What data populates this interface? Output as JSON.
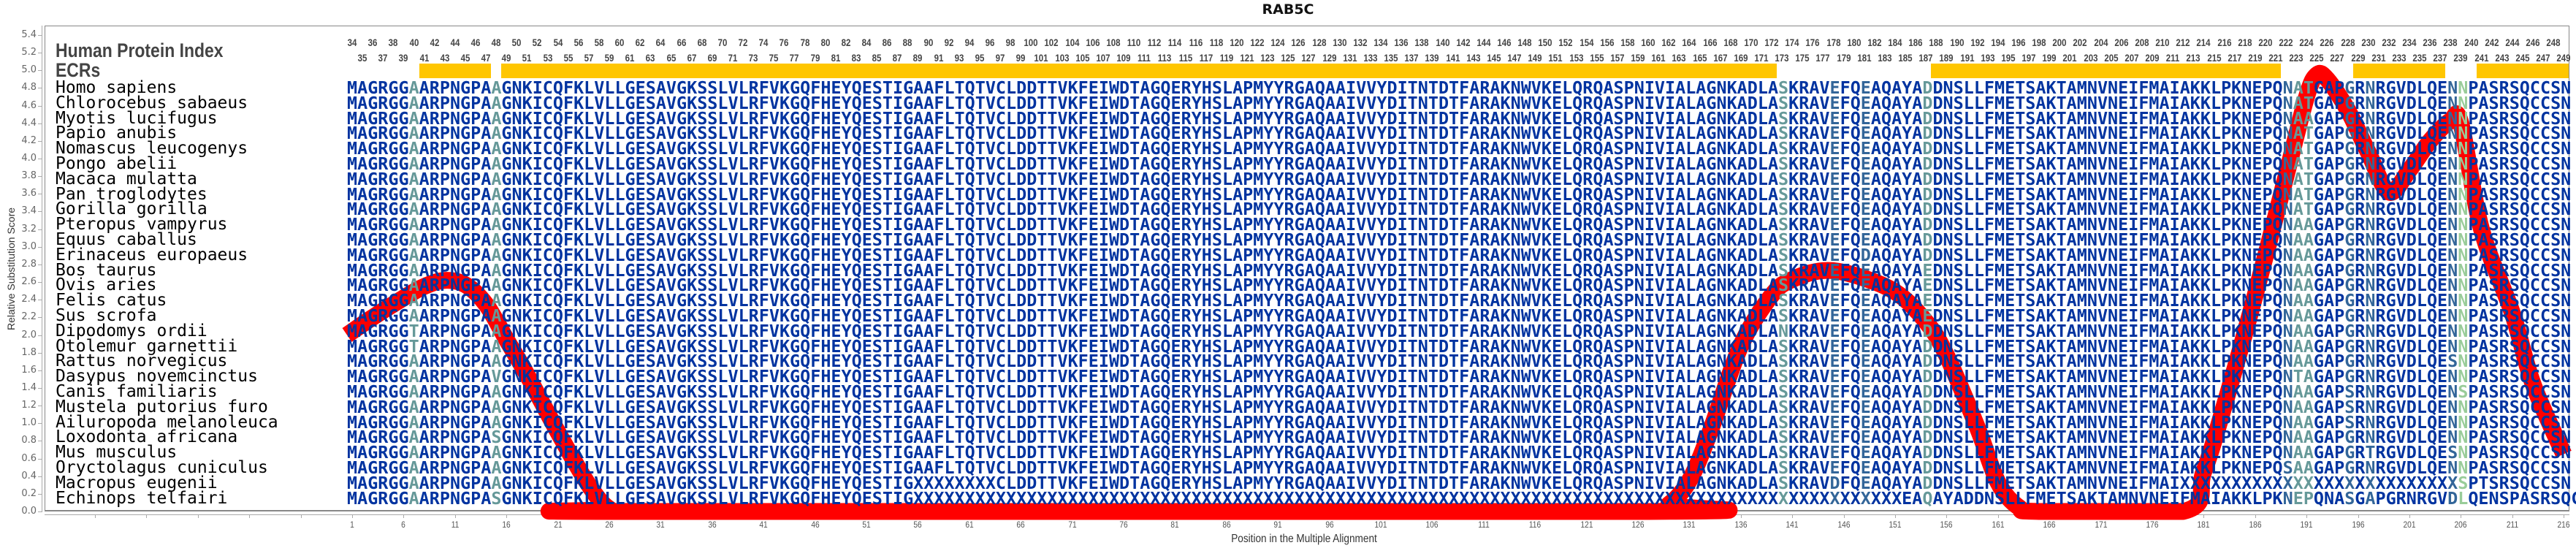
{
  "title": "RAB5C",
  "labels": {
    "human_protein_index": "Human Protein Index",
    "ecrs": "ECRs"
  },
  "human_index": {
    "start": 34,
    "end": 249
  },
  "ecr_ranges": [
    [
      41,
      47
    ],
    [
      49,
      172
    ],
    [
      188,
      221
    ],
    [
      229,
      237
    ],
    [
      241,
      249
    ]
  ],
  "colors": {
    "ecr": "#ffc600",
    "curve": "#ff0000",
    "conserved": "#0033a0",
    "moderate": "#336699",
    "low": "#669999",
    "lowest": "#99cc99"
  },
  "column_conservation": {
    "moderate": [
      145,
      148,
      189,
      195,
      197,
      205
    ],
    "low": [
      7,
      15,
      140,
      154,
      190,
      191
    ],
    "lowest": [
      206
    ]
  },
  "species": [
    {
      "name": "Homo sapiens",
      "sequence": "MAGRGGAARPNGPAAGNKICQFKLVLLGESAVGKSSLVLRFVKGQFHEYQESTIGAAFLTQTVCLDDTTVKFEIWDTAGQERYHSLAPMYYRGAQAAIVVYDITNTDTFARAKNWVKELQRQASPNIVIALAGNKADLASKRAVEFQEAQAYADDNSLLFMETSAKTAMNVNEIFMAIAKKLPKNEPQNATGAPGRNRGVDLQENNPASRSQCCSN"
    },
    {
      "name": "Chlorocebus sabaeus",
      "sequence": "MAGRGGAARPNGPAAGNKICQFKLVLLGESAVGKSSLVLRFVKGQFHEYQESTIGAAFLTQTVCLDDTTVKFEIWDTAGQERYHSLAPMYYRGAQAAIVVYDITNTDTFARAKNWVKELQRQASPNIVIALAGNKADLASKRAVEFQEAQAYADDNSLLFMETSAKTAMNVNEIFMAIAKKLPKNEPQNATGAPGRNRGVDLQENNPASRSQCCSN"
    },
    {
      "name": "Myotis lucifugus",
      "sequence": "MAGRGGAARPNGPAAGNKICQFKLVLLGESAVGKSSLVLRFVKGQFHEYQESTIGAAFLTQTVCLDDTTVKFEIWDTAGQERYHSLAPMYYRGAQAAIVVYDITNTDTFARAKNWVKELQRQASPNIVIALAGNKADLASKRAVEFQEAQAYADDNSLLFMETSAKTAMNVNEIFMAIAKKLPKNEPQNAAGAPGRNRGVDLQENNPASRSQCCSN"
    },
    {
      "name": "Papio anubis",
      "sequence": "MAGRGGAARPNGPAAGNKICQFKLVLLGESAVGKSSLVLRFVKGQFHEYQESTIGAAFLTQTVCLDDTTVKFEIWDTAGQERYHSLAPMYYRGAQAAIVVYDITNTDTFARAKNWVKELQRQASPNIVIALAGNKADLASKRAVEFQEAQAYADDNSLLFMETSAKTAMNVNEIFMAIAKKLPKNEPQNATGAPGRNRGVDLQENNPASRSQCCSN"
    },
    {
      "name": "Nomascus leucogenys",
      "sequence": "MAGRGGAARPNGPAAGNKICQFKLVLLGESAVGKSSLVLRFVKGQFHEYQESTIGAAFLTQTVCLDDTTVKFEIWDTAGQERYHSLAPMYYRGAQAAIVVYDITNTDTFARAKNWVKELQRQASPNIVIALAGNKADLASKRAVEFQEAQAYADDNSLLFMETSAKTAMNVNEIFMAIAKKLPKNEPQNATGAPGRNRGVDLQENNPASRSQCCSN"
    },
    {
      "name": "Pongo abelii",
      "sequence": "MAGRGGAARPNGPAAGNKICQFKLVLLGESAVGKSSLVLRFVKGQFHEYQESTIGAAFLTQTVCLDDTTVKFEIWDTAGQERYHSLAPMYYRGAQAAIVVYDITNTDTFARAKNWVKELQRQASPNIVIALAGNKADLASKRAVEFQEAQAYADDNSLLFMETSAKTAMNVNEIFMAIAKKLPKNEPQNATGAPGRNRGVDLQENNPASRSQCCSN"
    },
    {
      "name": "Macaca mulatta",
      "sequence": "MAGRGGAARPNGPAAGNKICQFKLVLLGESAVGKSSLVLRFVKGQFHEYQESTIGAAFLTQTVCLDDTTVKFEIWDTAGQERYHSLAPMYYRGAQAAIVVYDITNTDTFARAKNWVKELQRQASPNIVIALAGNKADLASKRAVEFQEAQAYADDNSLLFMETSAKTAMNVNEIFMAIAKKLPKNEPQNATGAPGRNRGVDLQENNPASRSQCCSN"
    },
    {
      "name": "Pan troglodytes",
      "sequence": "MAGRGGAARPNGPAAGNKICQFKLVLLGESAVGKSSLVLRFVKGQFHEYQESTIGAAFLTQTVCLDDTTVKFEIWDTAGQERYHSLAPMYYRGAQAAIVVYDITNTDTFARAKNWVKELQRQASPNIVIALAGNKADLASKRAVEFQEAQAYADDNSLLFMETSAKTAMNVNEIFMAIAKKLPKNEPQNATGAPGRNRGVDLQENNPASRSQCCSN"
    },
    {
      "name": "Gorilla gorilla",
      "sequence": "MAGRGGAARPNGPAAGNKICQFKLVLLGESAVGKSSLVLRFVKGQFHEYQESTIGAAFLTQTVCLDDTTVKFEIWDTAGQERYHSLAPMYYRGAQAAIVVYDITNTDTFARAKNWVKELQRQASPNIVIALAGNKADLASKRAVEFQEAQAYADDNSLLFMETSAKTAMNVNEIFMAIAKKLPKNEPQNATGAPGRNRGVDLQENNPASRSQCCSN"
    },
    {
      "name": "Pteropus vampyrus",
      "sequence": "MAGRGGAARPNGPAAGNKICQFKLVLLGESAVGKSSLVLRFVKGQFHEYQESTIGAAFLTQTVCLDDTTVKFEIWDTAGQERYHSLAPMYYRGAQAAIVVYDITNTDTFARAKNWVKELQRQASPNIVIALAGNKADLASKRAVEFQEAQAYADDNSLLFMETSAKTAMNVNEIFMAIAKKLPKNEPQNAAGAPGRNRGVDLQENNPASRSQCCSN"
    },
    {
      "name": "Equus caballus",
      "sequence": "MAGRGGAARPNGPAAGNKICQFKLVLLGESAVGKSSLVLRFVKGQFHEYQESTIGAAFLTQTVCLDDTTVKFEIWDTAGQERYHSLAPMYYRGAQAAIVVYDITNTDTFARAKNWVKELQRQASPNIVIALAGNKADLASKRAVEFQEAQAYADDNSLLFMETSAKTAMNVNEIFMAIAKKLPKNEPQNAAGAPGRNRGVDLQENNPASRSQCCSN"
    },
    {
      "name": "Erinaceus europaeus",
      "sequence": "MAGRGGAARPNGPAAGNKICQFKLVLLGESAVGKSSLVLRFVKGQFHEYQESTIGAAFLTQTVCLDDTTVKFEIWDTAGQERYHSLAPMYYRGAQAAIVVYDITNTDTFARAKNWVKELQRQASPNIVIALAGNKADLASKRAVEFQDAQAYADDNSLLFMETSAKTAMNVNEIFMAIAKKLPKNEPQNAAGAPGRNRGVDLQENNPASRSQCCSN"
    },
    {
      "name": "Bos taurus",
      "sequence": "MAGRGGAARPNGPAAGNKICQFKLVLLGESAVGKSSLVLRFVKGQFHEYQESTIGAAFLTQTVCLDDTTVKFEIWDTAGQERYHSLAPMYYRGAQAAIVVYDITNTDTFARAKNWVKELQRQASPNIVIALAGNKADLASKRAVEFQEAQAYAEDNSLLFMETSAKTAMNVNEIFMAIAKKLPKNEPQNAAGAPGRNRGVDLQENNPASRSQCCSN"
    },
    {
      "name": "Ovis aries",
      "sequence": "MAGRGGAARPNGPAAGNKICQFKLVLLGESAVGKSSLVLRFVKGQFHEYQESTIGAAFLTQTVCLDDTTVKFEIWDTAGQERYHSLAPMYYRGAQAAIVVYDITNTDTFARAKNWVKELQRQASPNIVIALAGNKADLASKRAVEFQEAQAYAEDNSLLFMETSAKTAMNVNEIFMAIAKKLPKNEPQNAAGAPGRNRGVDLQENNPASRSQCCSN"
    },
    {
      "name": "Felis catus",
      "sequence": "MAGRGGAARPNGPAAGNKICQFKLVLLGESAVGKSSLVLRFVKGQFHEYQESTIGAAFLTQTVCLDDTTVKFEIWDTAGQERYHSLAPMYYRGAQAAIVVYDITNTDTFARAKNWVKELQRQASPNIVIALAGNKADLASKRAVEFQEAQAYAEDNSLLFMETSAKTAMNVNEIFMAIAKKLPKNEPQNAAGAPGRNRGVDLQENNPASRSQCCSN"
    },
    {
      "name": "Sus scrofa",
      "sequence": "MAGRGGAARPNGPAAGNKICQFKLVLLGESAVGKSSLVLRFVKGQFHEYQESTIGAAFLTQTVCLDDTTVKFEIWDTAGQERYHSLAPMYYRGAQAAIVVYDITNTDTFARAKNWVKELQRQASPNIVIALAGNKADLASKRAVEFQEAQAYAEDNSLLFMETSAKTAMNVNEIFMAIAKKLPKNEPQNAAGAPGRNRGVDLQENNPASRSQCCSN"
    },
    {
      "name": "Dipodomys ordii",
      "sequence": "MAGRGGTARPNGPAAGNKICQFKLVLLGESAVGKSSLVLRFVKGQFHEYQESTIGAAFLTQTVCLDDTTVKFEIWDTAGQERYHSLAPMYYRGAQAAIVVYDITNTDTFARAKNWVKELQRQASPNIVIALAGNKADLANKRAVEFQEAQAYADDNSLLFMETSAKTAMNVNEIFMAIAKKLPKNEPQNAAGAPGRNRGVDLQENNPASRSQCCSN"
    },
    {
      "name": "Otolemur garnettii",
      "sequence": "MAGRGGTARPNGPAAGNKICQFKLVLLGESAVGKSSLVLRFVKGQFHEYQESTIGAAFLTQTVCLDDTTVKFEIWDTAGQERYHSLAPMYYRGAQAAIVVYDITNTDTFARAKNWVKELQRQASPNIVIALAGNKADLASKRAVEFQEAQAYADDNSLLFMETSAKTAMNVNEIFMAIAKKLPKNEPQNAAGAPGRNRGVDLQENNPASRSQCCSN"
    },
    {
      "name": "Rattus norvegicus",
      "sequence": "MAGRGGAARPNGPAAGNKICQFKLVLLGESAVGKSSLVLRFVKGQFHEYQESTIGAAFLTQTVCLDDTTVKFEIWDTAGQERYHSLAPMYYRGAQAAIVVYDITNTDTFARAKNWVKELQRQASPNIVIALAGNKADLASKRAVEFQEAQAYADDNSLLFMETSAKTAMNVNEIFMAIAKKLPKNEPQNAAGAPGRNRGVDLQESNPASRSQCCSN"
    },
    {
      "name": "Dasypus novemcinctus",
      "sequence": "MAGRGGAARPNGPAVGNKICQFKLVLLGESAVGKSSLVLRFVKGQFHEYQESTIGAAFLTQTVCLDDTTVKFEIWDTAGQERYHSLAPMYYRGAQAAIVVYDITNTDTFARAKNWVKELQRQASPNIVIALAGNKADLASKRAVEFQEAQAYADDNSLLFMETSAKTAMNVNEIFMAIAKKLPKNEPQNTAGAPGRNRGVDLQENNPASRSQCCSN"
    },
    {
      "name": "Canis familiaris",
      "sequence": "MAGRGGAARPNGPAAGNKICQFKLVLLGESAVGKSSLVLRFVKGQFHEYQESTIGAAFLTQTVCLDDTTVKFEIWDTAGQERYHSLAPMYYRGAQAAIVVYDITNTDTFARAKNWVKELQRQASPNIVIALAGNKADLASKRAVEFQEAQAYADDNSLLFMETSAKTAMNVNEIFMAIAKKLPKNEPQNAAGAPSRNRGVDLQENSPASRSQCCSN"
    },
    {
      "name": "Mustela putorius furo",
      "sequence": "MAGRGGAARPNGPAAGNKICQFKLVLLGESAVGKSSLVLRFVKGQFHEYQESTIGAAFLTQTVCLDDTTVKFEIWDTAGQERYHSLAPMYYRGAQAAIVVYDITNTDTFARAKNWVKELQRQASPNIVIALAGNKADLASKRAVEFQEAQAYADDNSLLFMETSAKTAMNVNEIFMAIAKKLPKNEPQNAAGAPSRNRGVDLQENNPASRSQCCSN"
    },
    {
      "name": "Ailuropoda melanoleuca",
      "sequence": "MAGRGGAARPNGPAAGNKICQFKLVLLGESAVGKSSLVLRFVKGQFHEYQESTIGAAFLTQTVCLDDTTVKFEIWDTAGQERYHSLAPMYYRGAQAAIVVYDITNTDTFARAKNWVKELQRQASPNIVIALAGNKADLASKRAVEFQEAQAYADDNSLLFMETSAKTAMNVNEIFMAIAKKLPKNEPQNAAGAPSRNRGVDLQENNPASRSQCCSN"
    },
    {
      "name": "Loxodonta africana",
      "sequence": "MAGRGGAARPNGPASGNKICQFKLVLLGESAVGKSSLVLRFVKGQFHEYQESTIGAAFLTQTVCLDDTTVKFEIWDTAGQERYHSLAPMYYRGAQAAIVVYDITNTDTFARAKNWVKELQRQASPNIVIALAGNKADLASKRAVEFQEAQAYADDNSLLFMETSAKTAMNVNEIFMAIAKKLPKNEPQNAAGAPGRNRGVDLQENNPASRSQCCSN"
    },
    {
      "name": "Mus musculus",
      "sequence": "MAGRGGAARPNGPAAGNKICQFKLVLLGESAVGKSSLVLRFVKGQFHEYQESTIGAAFLTQTVCLDDTTVKFEIWDTAGQERYHSLAPMYYRGAQAAIVVYDITNTDTFARAKNWVKELQRQASPNIVIALAGNKADLASKRAVEFQEAQAYADDNSLLFMETSAKTAMNVNEIFMAIAKKLPKNEPQNAAGAPGRTRGVDLQESNPASRSQCCSN"
    },
    {
      "name": "Oryctolagus cuniculus",
      "sequence": "MAGRGGAARPNGPAAGNKICQFKLVLLGESAVGKSSLVLRFVKGQFHEYQESTIGAAFLTQTVCLDDTTVKFEIWDTAGQERYHSLAPMYYRGAQAAIVVYDITNTDTFARAKNWVKELQRQASPNIVIALAGNKADLASKRAVEFQEAQAYADDNSLLFMETSAKTAMNVNEIFMAIAKKLPKNEPQSAAGAPGRNRGVDLQENNPASRSQCCSN"
    },
    {
      "name": "Macropus eugenii",
      "sequence": "MAGRGGAARPNGPAAGNKICQFKLVLLGESAVGKSSLVLRFVKGQFHEYQESTIGXXXXXXXXCLDDTTVKFEIWDTAGQERYHSLAPMYYRGAQAAIVVYDITNTDTFARAKNWVKELQRQASPNIVIALAGNKADLASKRAVDFQEAQAYADDNSLLFMETSAKTAMNVNEIFMAIXXXXXXXXXXXXXXXXXXXXXXXXXXXSPTSRSQCCSN"
    },
    {
      "name": "Echinops telfairi",
      "sequence": "MAGRGGAARPNGPASGNKICQFKLVLLGESAVGKSSLVLRFVKGQFHEYQESTIGXXXXXXXXXXXXXXXXXXXXXXXXXXXXXXXXXXXXXXXXXXXXXXXXXXXXXXXXXXXXXXXXXXXXXXXXXXXXXXXXXXXXXXXXXXXXXXXXEAQAYADDNSLLFMETSAKTAMNVNEIFMAIAKKLPKNEPQNASGAPGRNRGVDLQENSPASRSQCCSN"
    }
  ],
  "chart_data": {
    "type": "line",
    "title": "RAB5C",
    "xlabel": "Position in the Multiple Alignment",
    "ylabel": "Relative Substitution Score",
    "ylim": [
      0,
      5.4
    ],
    "ytick_step": 0.2,
    "xlim": [
      1,
      216
    ],
    "xtick_start": 1,
    "xtick_step": 5,
    "grid": false,
    "x": [
      0.5,
      3,
      6,
      8,
      10,
      12,
      14,
      16,
      18,
      21,
      24,
      26,
      28,
      127,
      129,
      131,
      133,
      136,
      139,
      141,
      144,
      147,
      151,
      154,
      156,
      159,
      161,
      163,
      165,
      179,
      181,
      183,
      186,
      189,
      191,
      192,
      193,
      195,
      197,
      199,
      201,
      203,
      205,
      206,
      208,
      211,
      213,
      216
    ],
    "y": [
      2.0,
      2.2,
      2.42,
      2.55,
      2.62,
      2.57,
      2.35,
      1.95,
      1.55,
      0.9,
      0.3,
      0.03,
      0,
      0,
      0.08,
      0.35,
      0.9,
      1.88,
      2.45,
      2.63,
      2.73,
      2.68,
      2.49,
      2.15,
      1.77,
      0.95,
      0.33,
      0.05,
      0,
      0,
      0.45,
      1.2,
      2.45,
      3.8,
      4.7,
      4.95,
      4.9,
      4.55,
      4.07,
      3.62,
      3.87,
      4.2,
      4.43,
      4.4,
      3.2,
      2.25,
      1.45,
      0.65
    ]
  }
}
